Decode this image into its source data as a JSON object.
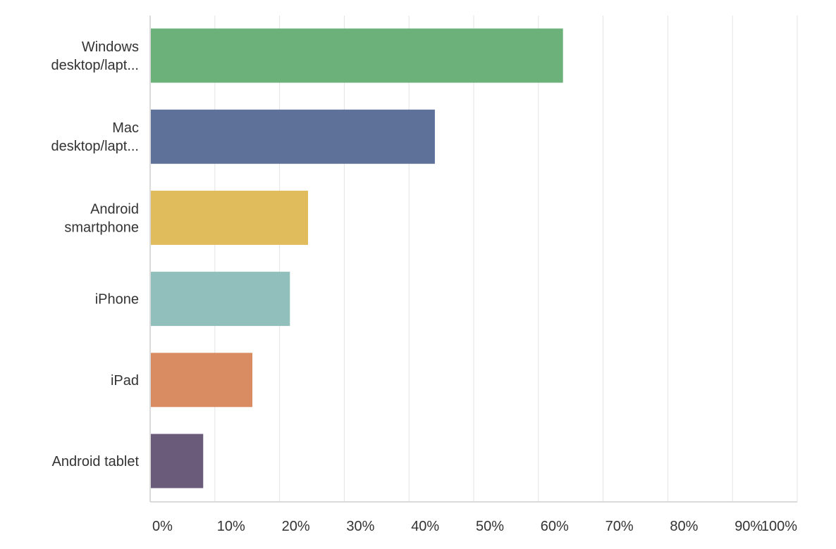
{
  "chart_data": {
    "type": "bar",
    "orientation": "horizontal",
    "categories": [
      [
        "Windows",
        "desktop/lapt..."
      ],
      [
        "Mac",
        "desktop/lapt..."
      ],
      [
        "Android",
        "smartphone"
      ],
      [
        "iPhone"
      ],
      [
        "iPad"
      ],
      [
        "Android tablet"
      ]
    ],
    "values": [
      63.8,
      44.0,
      24.4,
      21.6,
      15.8,
      8.2
    ],
    "colors": [
      "#6cb07a",
      "#5d7199",
      "#e0bc5c",
      "#91bfbc",
      "#d98c62",
      "#6b5b7b"
    ],
    "xlim": [
      0,
      100
    ],
    "ticks": [
      0,
      10,
      20,
      30,
      40,
      50,
      60,
      70,
      80,
      90,
      100
    ],
    "tick_labels": [
      "0%",
      "10%",
      "20%",
      "30%",
      "40%",
      "50%",
      "60%",
      "70%",
      "80%",
      "90%",
      "100%"
    ],
    "grid": true
  }
}
